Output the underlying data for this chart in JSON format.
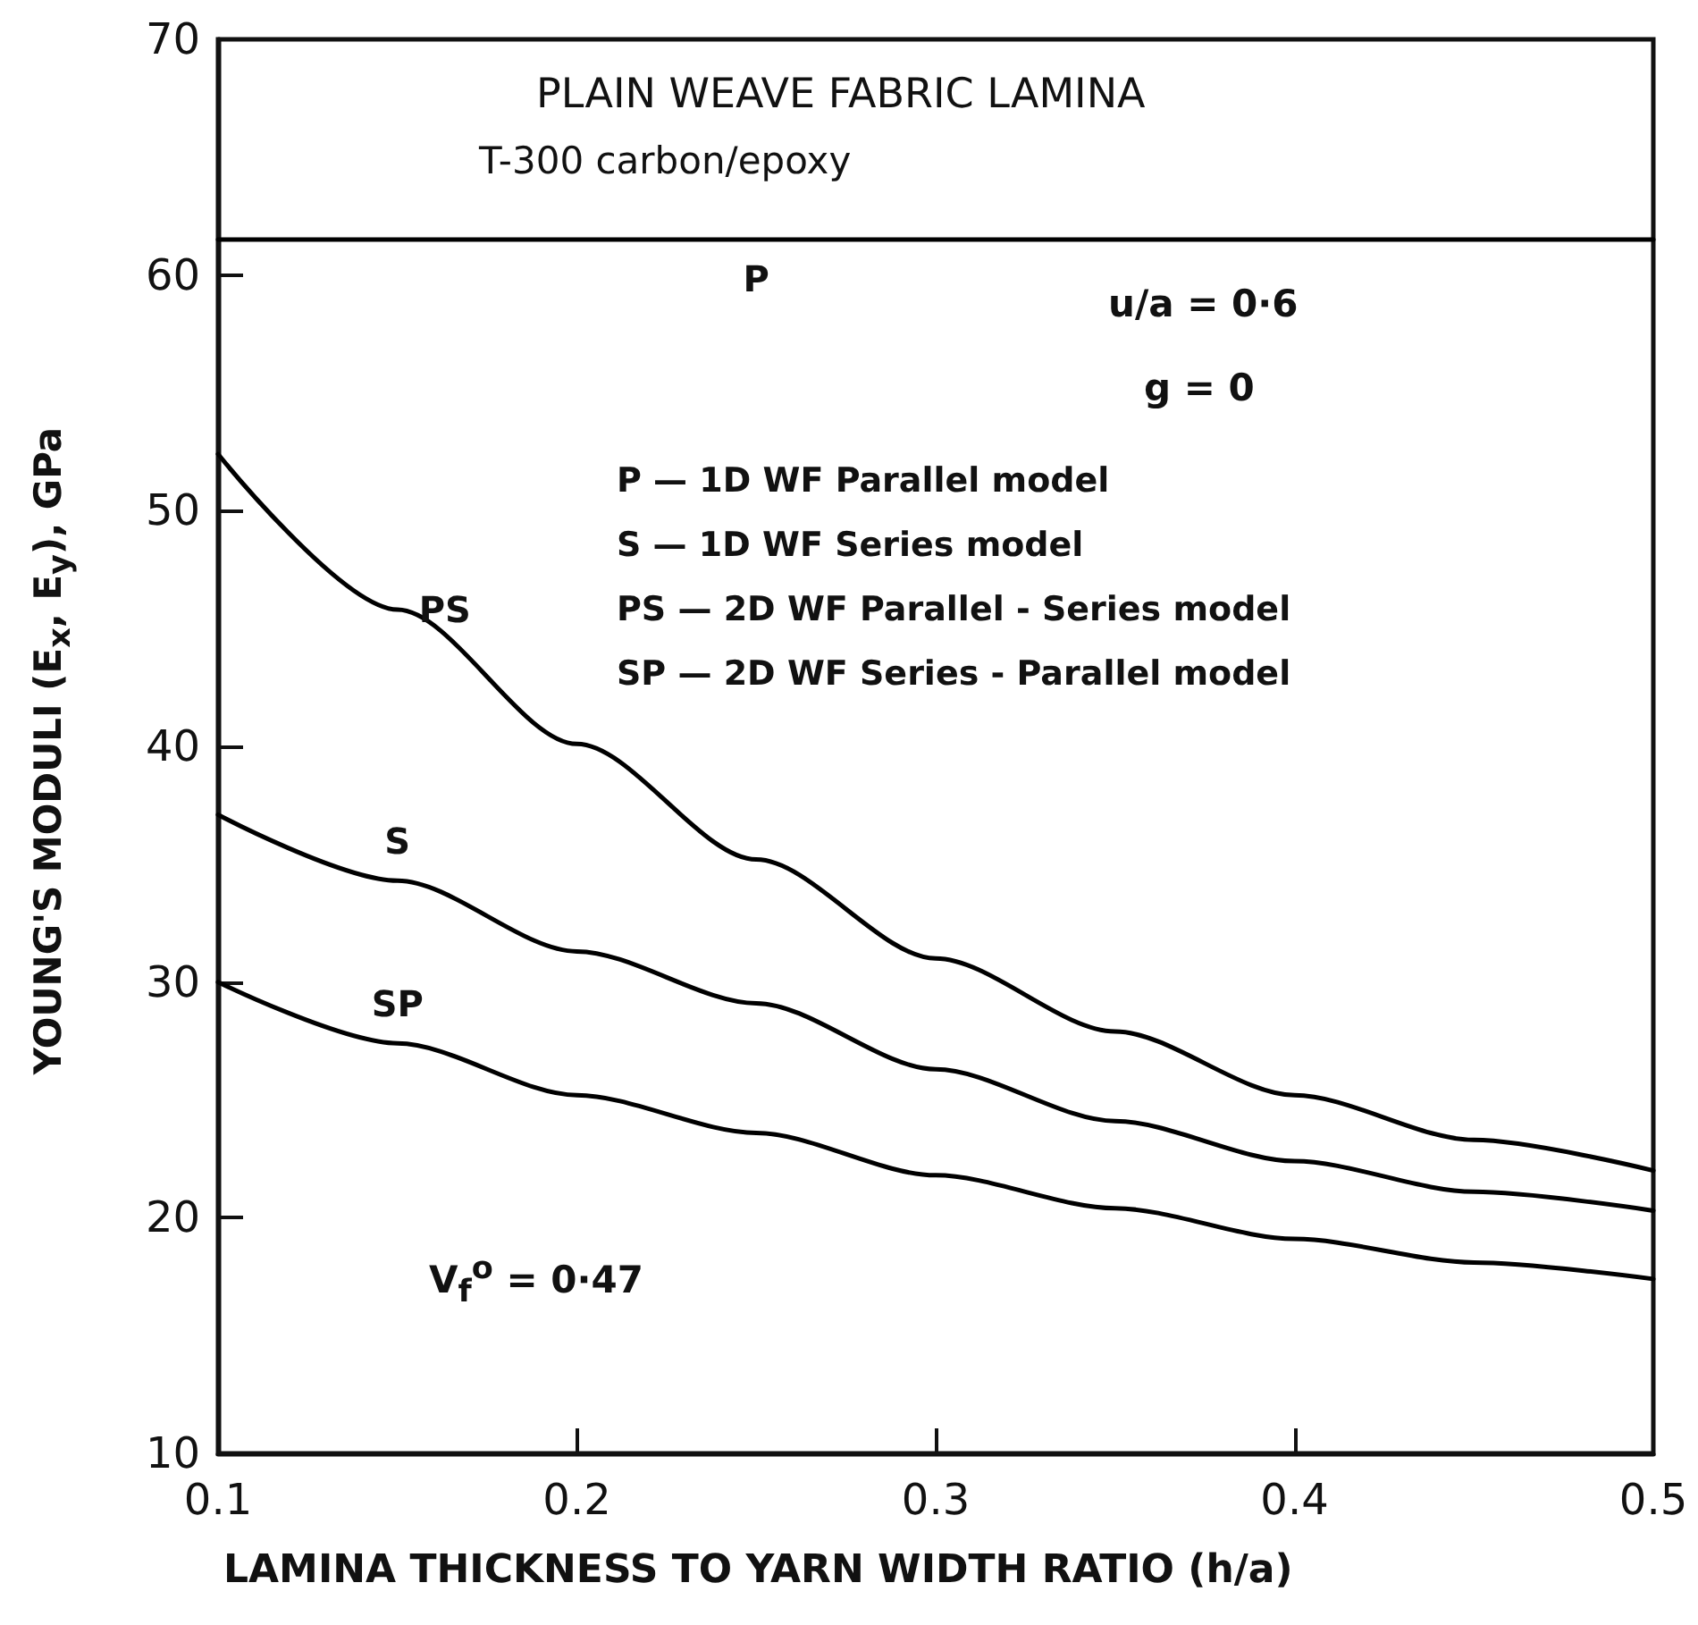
{
  "chart_data": {
    "type": "line",
    "title": "PLAIN WEAVE FABRIC LAMINA",
    "subtitle": "T-300 carbon/epoxy",
    "xlabel": "LAMINA THICKNESS TO YARN WIDTH RATIO (h/a)",
    "ylabel": "YOUNG'S MODULI (E$_{x}$, E$_{y}$), GPa",
    "annotations": [
      "u/a = 0·6",
      "g = 0",
      "P  — 1D WF Parallel model",
      "S  — 1D WF Series model",
      "PS — 2D WF Parallel - Series model",
      "SP — 2D WF Series - Parallel model",
      "V$_{f}$$^{o}$ = 0·47"
    ],
    "x": [
      0.1,
      0.15,
      0.2,
      0.25,
      0.3,
      0.35,
      0.4,
      0.45,
      0.5
    ],
    "series": [
      {
        "name": "P",
        "color": "#000000",
        "values": [
          61.5,
          61.5,
          61.5,
          61.5,
          61.5,
          61.5,
          61.5,
          61.5,
          61.5
        ]
      },
      {
        "name": "PS",
        "color": "#000000",
        "values": [
          52.4,
          45.8,
          40.1,
          35.2,
          31.0,
          27.9,
          25.2,
          23.3,
          22.0
        ]
      },
      {
        "name": "S",
        "color": "#000000",
        "values": [
          37.1,
          34.3,
          31.3,
          29.1,
          26.3,
          24.1,
          22.4,
          21.1,
          20.3
        ]
      },
      {
        "name": "SP",
        "color": "#000000",
        "values": [
          30.0,
          27.4,
          25.2,
          23.6,
          21.8,
          20.4,
          19.1,
          18.1,
          17.4
        ]
      }
    ],
    "xlim": [
      0.1,
      0.5
    ],
    "xticks": [
      0.1,
      0.2,
      0.3,
      0.4,
      0.5
    ],
    "ylim": [
      10,
      70
    ],
    "yticks": [
      10,
      20,
      30,
      40,
      50,
      60,
      70
    ],
    "grid": false,
    "legend": false,
    "marker": "none",
    "line_style": "solid"
  }
}
